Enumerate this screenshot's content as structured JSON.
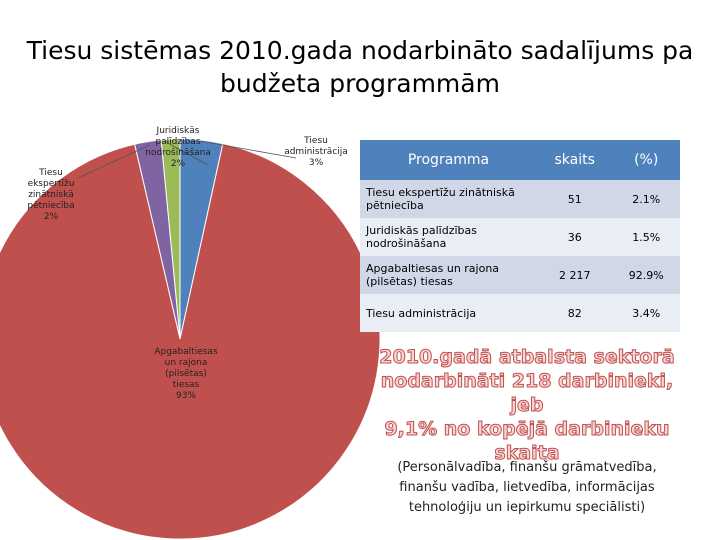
{
  "title": {
    "line1": "Tiesu sistēmas 2010.gada nodarbināto sadalījums pa",
    "line2": "budžeta programmām"
  },
  "chart_data": {
    "type": "pie",
    "categories": [
      "Tiesu ekspertīžu zinātniskā pētniecība",
      "Juridiskās palīdzības nodrošināšana",
      "Apgabaltiesas un rajona (pilsētas) tiesas",
      "Tiesu administrācija"
    ],
    "values": [
      51,
      36,
      2217,
      82
    ],
    "percent_labels": [
      "2%",
      "2%",
      "93%",
      "3%"
    ],
    "colors": [
      "#8064a2",
      "#9bbb59",
      "#c0504d",
      "#4f81bd"
    ],
    "legend": "none",
    "slice_labels": [
      {
        "lines": [
          "Tiesu",
          "ekspertīžu",
          "zinātniskā",
          "pētniecība",
          "2%"
        ]
      },
      {
        "lines": [
          "Juridiskās",
          "palīdzības",
          "nodrošināšana",
          "2%"
        ]
      },
      {
        "lines": [
          "Apgabaltiesas",
          "un rajona",
          "(pilsētas)",
          "tiesas",
          "93%"
        ]
      },
      {
        "lines": [
          "Tiesu",
          "administrācija",
          "3%"
        ]
      }
    ]
  },
  "table": {
    "headers": [
      "Programma",
      "skaits",
      "(%)"
    ],
    "header_color": "#4f81bd",
    "rows": [
      {
        "name": "Tiesu ekspertīžu zinātniskā pētniecība",
        "count": "51",
        "pct": "2.1%"
      },
      {
        "name": "Juridiskās palīdzības nodrošināšana",
        "count": "36",
        "pct": "1.5%"
      },
      {
        "name": "Apgabaltiesas un rajona (pilsētas) tiesas",
        "count": "2 217",
        "pct": "92.9%"
      },
      {
        "name": "Tiesu administrācija",
        "count": "82",
        "pct": "3.4%"
      }
    ]
  },
  "highlight": {
    "line1": "2010.gadā atbalsta sektorā",
    "line2": "nodarbināti 218 darbinieki, jeb",
    "line3": "9,1% no kopējā darbinieku",
    "line4": "skaita",
    "color": "#c0504d"
  },
  "note": {
    "line1": "(Personālvadība, finanšu grāmatvedība,",
    "line2": "finanšu vadība, lietvedība, informācijas",
    "line3": "tehnoloģiju un iepirkumu speciālisti)"
  }
}
